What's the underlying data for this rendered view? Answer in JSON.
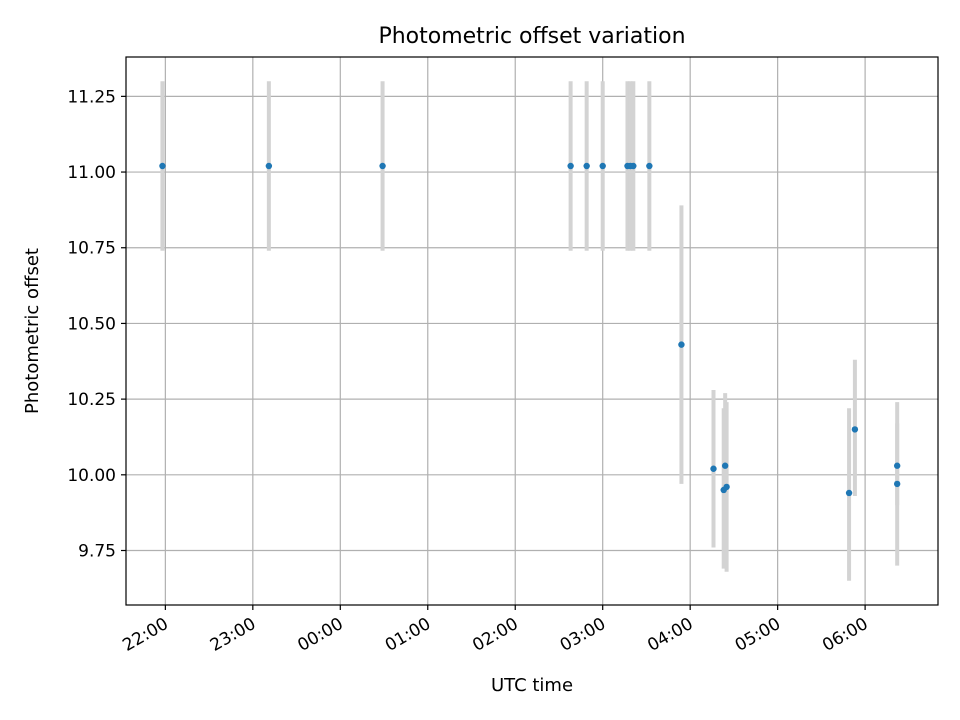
{
  "chart_data": {
    "type": "scatter",
    "title": "Photometric offset variation",
    "xlabel": "UTC time",
    "ylabel": "Photometric offset",
    "x_axis_type": "time",
    "x_start": "21:33",
    "x_end": "06:50",
    "x_ticks": [
      "22:00",
      "23:00",
      "00:00",
      "01:00",
      "02:00",
      "03:00",
      "04:00",
      "05:00",
      "06:00"
    ],
    "ylim": [
      9.57,
      11.38
    ],
    "y_ticks": [
      "9.75",
      "10.00",
      "10.25",
      "10.50",
      "10.75",
      "11.00",
      "11.25"
    ],
    "grid": true,
    "marker_color": "#1f77b4",
    "errorbar_color": "#d3d3d3",
    "points": [
      {
        "time": "21:58",
        "y": 11.02,
        "ylow": 10.74,
        "yhigh": 11.3
      },
      {
        "time": "23:11",
        "y": 11.02,
        "ylow": 10.74,
        "yhigh": 11.3
      },
      {
        "time": "00:29",
        "y": 11.02,
        "ylow": 10.74,
        "yhigh": 11.3
      },
      {
        "time": "02:38",
        "y": 11.02,
        "ylow": 10.74,
        "yhigh": 11.3
      },
      {
        "time": "02:49",
        "y": 11.02,
        "ylow": 10.74,
        "yhigh": 11.3
      },
      {
        "time": "03:00",
        "y": 11.02,
        "ylow": 10.74,
        "yhigh": 11.3
      },
      {
        "time": "03:17",
        "y": 11.02,
        "ylow": 10.74,
        "yhigh": 11.3
      },
      {
        "time": "03:19",
        "y": 11.02,
        "ylow": 10.74,
        "yhigh": 11.3
      },
      {
        "time": "03:21",
        "y": 11.02,
        "ylow": 10.74,
        "yhigh": 11.3
      },
      {
        "time": "03:32",
        "y": 11.02,
        "ylow": 10.74,
        "yhigh": 11.3
      },
      {
        "time": "03:54",
        "y": 10.43,
        "ylow": 9.97,
        "yhigh": 10.89
      },
      {
        "time": "04:16",
        "y": 10.02,
        "ylow": 9.76,
        "yhigh": 10.28
      },
      {
        "time": "04:23",
        "y": 9.95,
        "ylow": 9.69,
        "yhigh": 10.22
      },
      {
        "time": "04:24",
        "y": 10.03,
        "ylow": 9.78,
        "yhigh": 10.27
      },
      {
        "time": "04:25",
        "y": 9.96,
        "ylow": 9.68,
        "yhigh": 10.24
      },
      {
        "time": "05:49",
        "y": 9.94,
        "ylow": 9.65,
        "yhigh": 10.22
      },
      {
        "time": "05:53",
        "y": 10.15,
        "ylow": 9.93,
        "yhigh": 10.38
      },
      {
        "time": "06:22",
        "y": 10.03,
        "ylow": 9.9,
        "yhigh": 10.17
      },
      {
        "time": "06:22",
        "y": 9.97,
        "ylow": 9.7,
        "yhigh": 10.24
      }
    ]
  }
}
